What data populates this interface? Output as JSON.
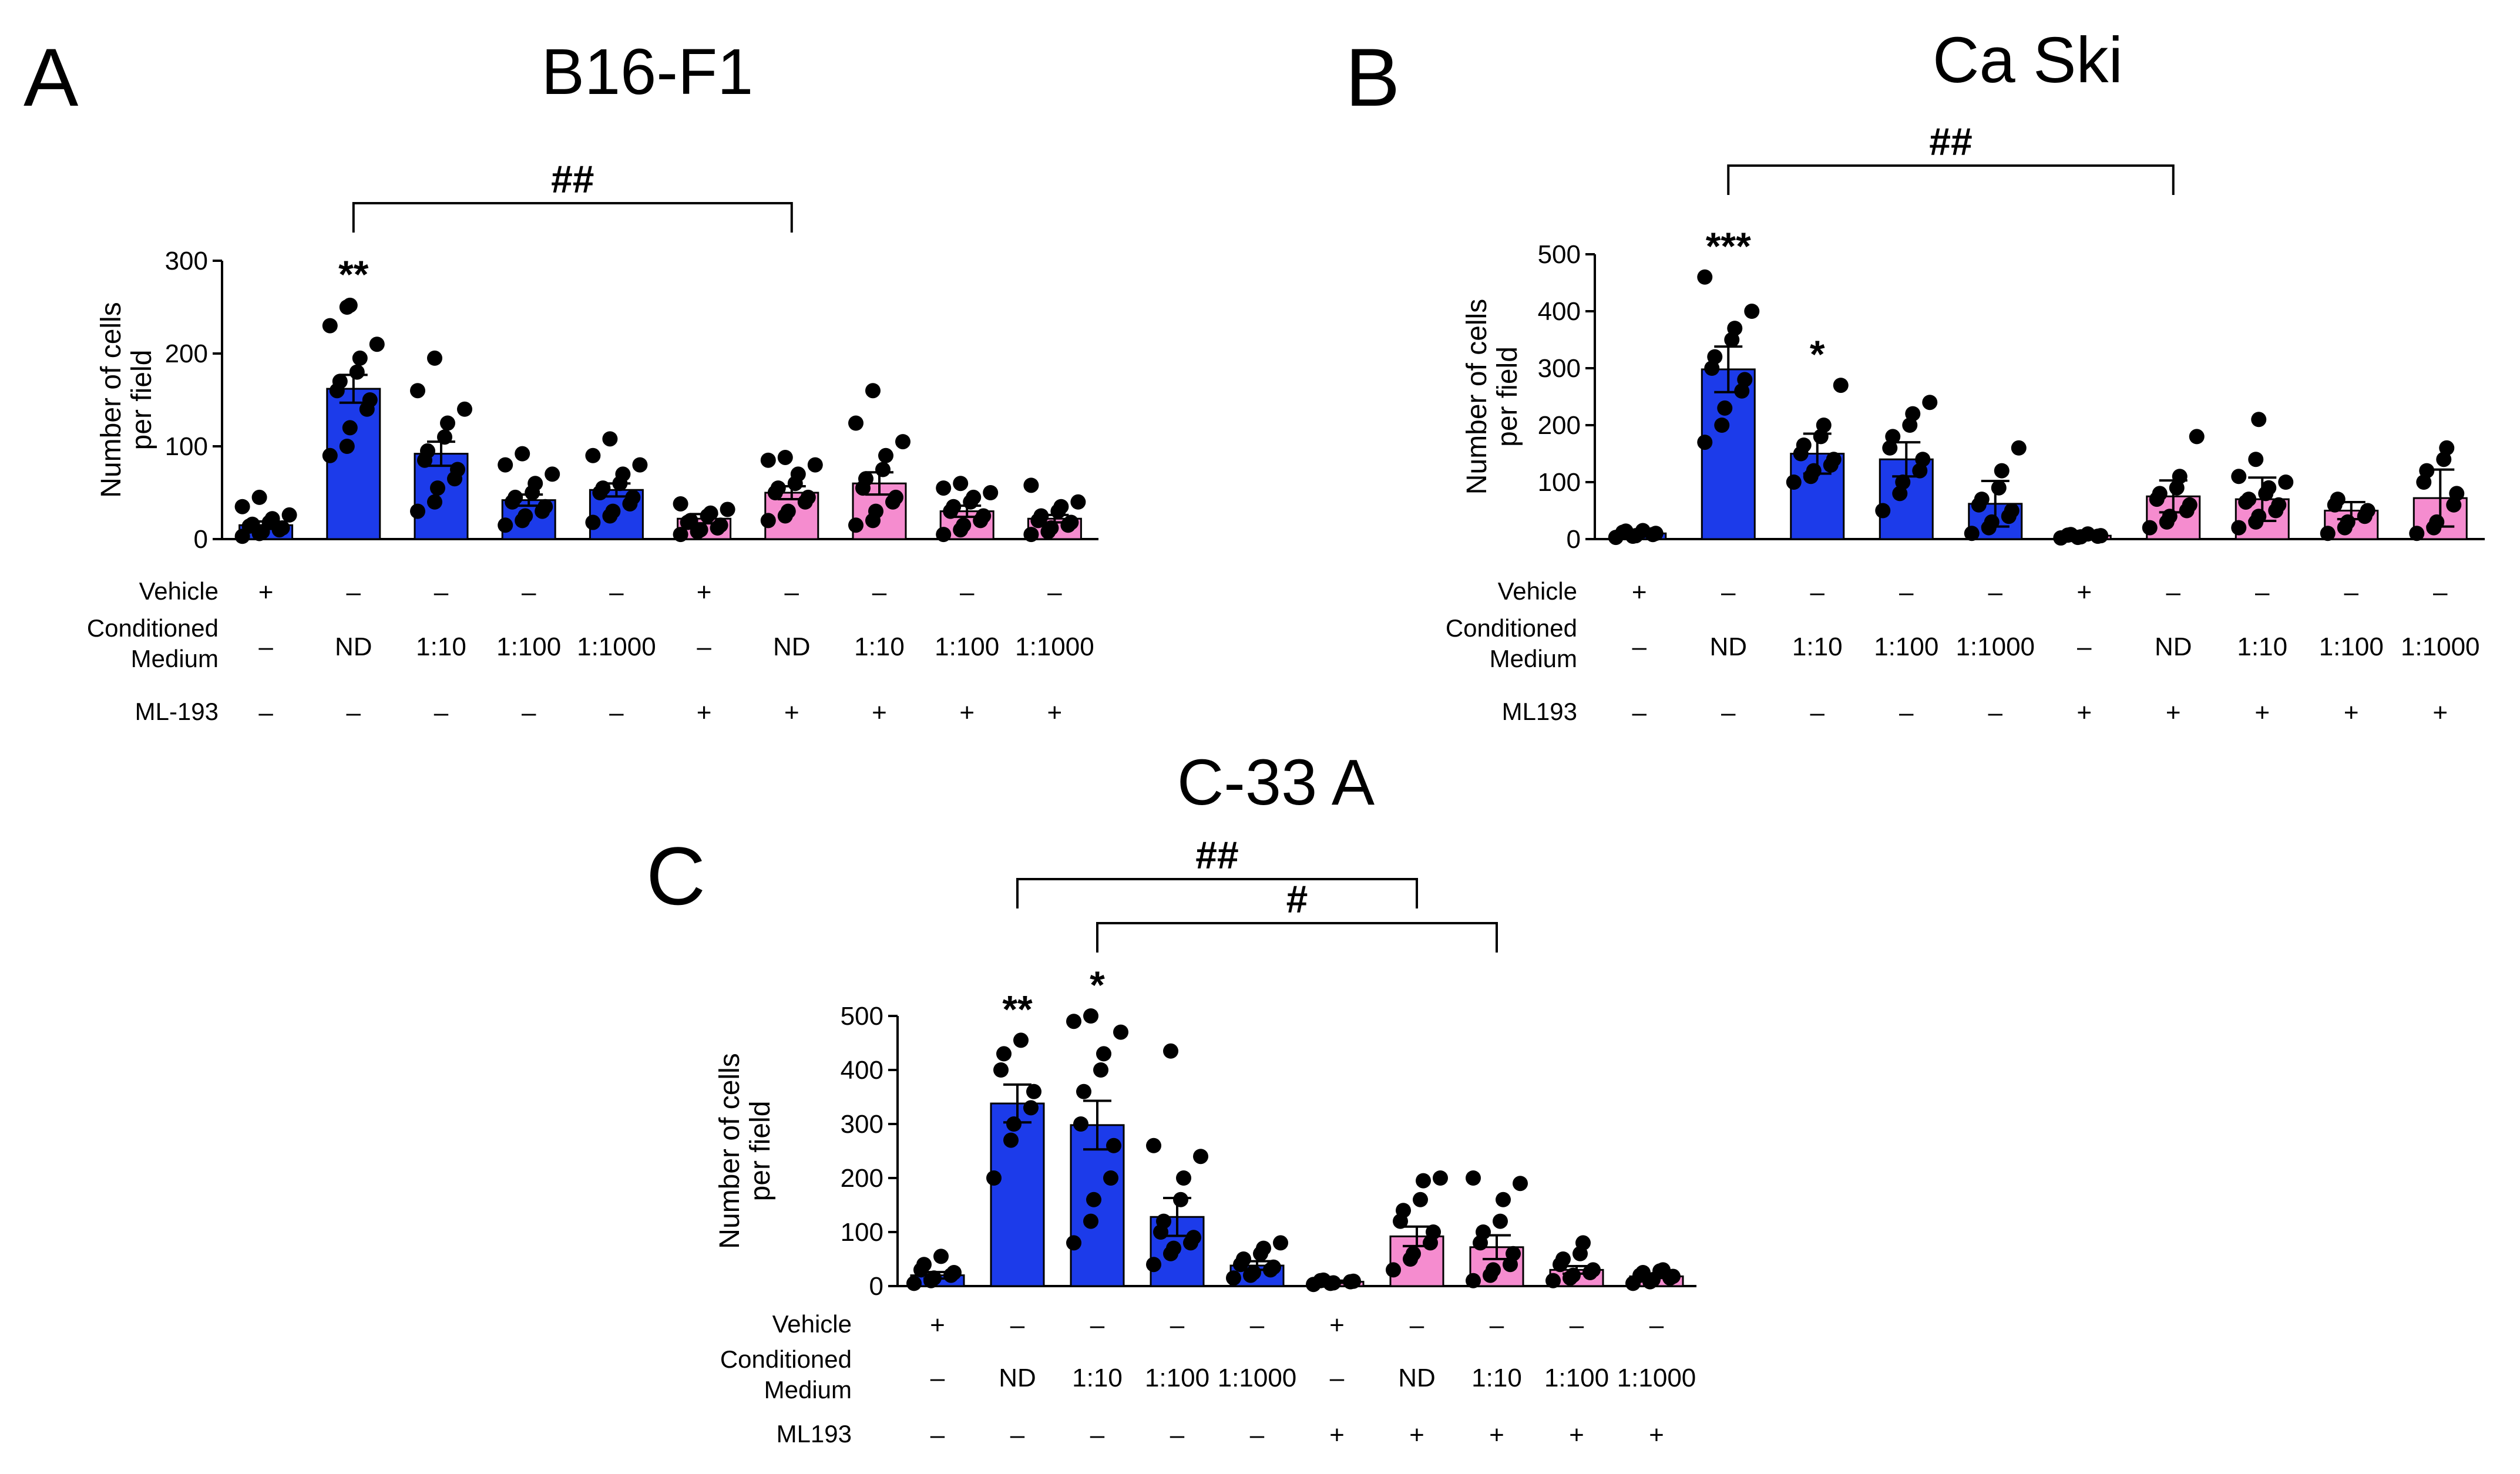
{
  "colors": {
    "blue": "#1c3bea",
    "pink": "#f58ccf",
    "ink": "#000000"
  },
  "row_labels": {
    "vehicle": "Vehicle",
    "cm_line1": "Conditioned",
    "cm_line2": "Medium"
  },
  "chart_data": [
    {
      "id": "A",
      "panel_label": "A",
      "type": "bar",
      "title": "B16-F1",
      "ylabel_line1": "Number of cells",
      "ylabel_line2": "per field",
      "ylim": [
        0,
        300
      ],
      "yticks": [
        "0",
        "100",
        "200",
        "300"
      ],
      "ml_label": "ML-193",
      "vehicle": [
        "+",
        "–",
        "–",
        "–",
        "–",
        "+",
        "–",
        "–",
        "–",
        "–"
      ],
      "conditioned_medium": [
        "–",
        "ND",
        "1:10",
        "1:100",
        "1:1000",
        "–",
        "ND",
        "1:10",
        "1:100",
        "1:1000"
      ],
      "ml193": [
        "–",
        "–",
        "–",
        "–",
        "–",
        "+",
        "+",
        "+",
        "+",
        "+"
      ],
      "bar_colors": [
        "blue",
        "blue",
        "blue",
        "blue",
        "blue",
        "pink",
        "pink",
        "pink",
        "pink",
        "pink"
      ],
      "values": [
        15,
        162,
        92,
        42,
        53,
        22,
        50,
        60,
        30,
        22
      ],
      "sem": [
        4,
        15,
        13,
        6,
        7,
        5,
        7,
        12,
        6,
        4
      ],
      "points": [
        [
          3,
          6,
          8,
          10,
          12,
          14,
          16,
          18,
          22,
          26,
          35,
          45
        ],
        [
          90,
          100,
          120,
          140,
          150,
          160,
          170,
          180,
          195,
          210,
          230,
          250,
          252
        ],
        [
          30,
          40,
          55,
          65,
          75,
          85,
          95,
          110,
          125,
          140,
          160,
          195
        ],
        [
          15,
          20,
          25,
          30,
          35,
          40,
          45,
          50,
          60,
          70,
          80,
          92
        ],
        [
          18,
          25,
          30,
          38,
          45,
          50,
          55,
          60,
          70,
          80,
          90,
          108
        ],
        [
          5,
          8,
          10,
          12,
          15,
          18,
          20,
          25,
          28,
          32,
          38
        ],
        [
          20,
          25,
          30,
          40,
          45,
          50,
          55,
          60,
          70,
          80,
          85,
          88
        ],
        [
          15,
          20,
          30,
          40,
          45,
          55,
          65,
          75,
          90,
          105,
          125,
          160
        ],
        [
          5,
          10,
          15,
          20,
          25,
          30,
          35,
          40,
          45,
          50,
          55,
          60
        ],
        [
          5,
          8,
          12,
          15,
          18,
          20,
          25,
          30,
          35,
          40,
          58
        ]
      ],
      "significance": [
        {
          "bar": 1,
          "label": "**"
        }
      ],
      "brackets": [
        {
          "from": 1,
          "to": 6,
          "label": "##"
        }
      ]
    },
    {
      "id": "B",
      "panel_label": "B",
      "type": "bar",
      "title": "Ca Ski",
      "ylabel_line1": "Number of cells",
      "ylabel_line2": "per field",
      "ylim": [
        0,
        500
      ],
      "yticks": [
        "0",
        "100",
        "200",
        "300",
        "400",
        "500"
      ],
      "ml_label": "ML193",
      "vehicle": [
        "+",
        "–",
        "–",
        "–",
        "–",
        "+",
        "–",
        "–",
        "–",
        "–"
      ],
      "conditioned_medium": [
        "–",
        "ND",
        "1:10",
        "1:100",
        "1:1000",
        "–",
        "ND",
        "1:10",
        "1:100",
        "1:1000"
      ],
      "ml193": [
        "–",
        "–",
        "–",
        "–",
        "–",
        "+",
        "+",
        "+",
        "+",
        "+"
      ],
      "bar_colors": [
        "blue",
        "blue",
        "blue",
        "blue",
        "blue",
        "pink",
        "pink",
        "pink",
        "pink",
        "pink"
      ],
      "values": [
        10,
        298,
        150,
        140,
        62,
        6,
        75,
        70,
        50,
        72
      ],
      "sem": [
        2,
        40,
        35,
        30,
        40,
        2,
        28,
        38,
        15,
        50
      ],
      "points": [
        [
          3,
          5,
          6,
          8,
          10,
          12,
          14,
          15
        ],
        [
          170,
          200,
          230,
          260,
          280,
          300,
          320,
          350,
          370,
          400,
          460
        ],
        [
          100,
          110,
          120,
          130,
          140,
          150,
          165,
          180,
          200,
          270
        ],
        [
          50,
          80,
          100,
          120,
          140,
          160,
          180,
          200,
          220,
          240
        ],
        [
          10,
          20,
          30,
          40,
          50,
          60,
          70,
          90,
          120,
          160
        ],
        [
          2,
          3,
          4,
          5,
          6,
          7,
          8,
          9
        ],
        [
          20,
          30,
          40,
          50,
          60,
          70,
          80,
          90,
          110,
          180
        ],
        [
          20,
          30,
          40,
          50,
          60,
          65,
          70,
          80,
          90,
          100,
          110,
          140,
          210
        ],
        [
          10,
          20,
          30,
          40,
          50,
          60,
          70
        ],
        [
          10,
          20,
          30,
          60,
          80,
          100,
          120,
          140,
          160
        ]
      ],
      "significance": [
        {
          "bar": 1,
          "label": "***"
        },
        {
          "bar": 2,
          "label": "*"
        }
      ],
      "brackets": [
        {
          "from": 1,
          "to": 6,
          "label": "##"
        }
      ]
    },
    {
      "id": "C",
      "panel_label": "C",
      "type": "bar",
      "title": "C-33 A",
      "ylabel_line1": "Number of cells",
      "ylabel_line2": "per field",
      "ylim": [
        0,
        500
      ],
      "yticks": [
        "0",
        "100",
        "200",
        "300",
        "400",
        "500"
      ],
      "ml_label": "ML193",
      "vehicle": [
        "+",
        "–",
        "–",
        "–",
        "–",
        "+",
        "–",
        "–",
        "–",
        "–"
      ],
      "conditioned_medium": [
        "–",
        "ND",
        "1:10",
        "1:100",
        "1:1000",
        "–",
        "ND",
        "1:10",
        "1:100",
        "1:1000"
      ],
      "ml193": [
        "–",
        "–",
        "–",
        "–",
        "–",
        "+",
        "+",
        "+",
        "+",
        "+"
      ],
      "bar_colors": [
        "blue",
        "blue",
        "blue",
        "blue",
        "blue",
        "pink",
        "pink",
        "pink",
        "pink",
        "pink"
      ],
      "values": [
        20,
        338,
        298,
        128,
        38,
        8,
        92,
        72,
        30,
        18
      ],
      "sem": [
        6,
        35,
        45,
        35,
        8,
        2,
        18,
        22,
        7,
        3
      ],
      "points": [
        [
          5,
          10,
          15,
          20,
          25,
          30,
          40,
          55
        ],
        [
          200,
          270,
          300,
          330,
          360,
          400,
          430,
          455
        ],
        [
          80,
          120,
          160,
          200,
          260,
          300,
          360,
          400,
          430,
          470,
          490,
          500
        ],
        [
          40,
          60,
          70,
          80,
          90,
          100,
          120,
          160,
          200,
          240,
          260,
          435
        ],
        [
          15,
          20,
          25,
          30,
          35,
          40,
          50,
          60,
          70,
          80
        ],
        [
          3,
          5,
          6,
          8,
          9,
          10,
          11
        ],
        [
          30,
          50,
          60,
          80,
          100,
          120,
          140,
          160,
          195,
          200
        ],
        [
          10,
          20,
          30,
          40,
          60,
          80,
          100,
          120,
          160,
          190,
          200
        ],
        [
          10,
          15,
          20,
          25,
          30,
          40,
          50,
          60,
          80
        ],
        [
          5,
          8,
          12,
          15,
          18,
          20,
          25,
          28,
          30
        ]
      ],
      "significance": [
        {
          "bar": 1,
          "label": "**"
        },
        {
          "bar": 2,
          "label": "*"
        }
      ],
      "brackets": [
        {
          "from": 1,
          "to": 6,
          "label": "##"
        },
        {
          "from": 2,
          "to": 7,
          "label": "#"
        }
      ]
    }
  ]
}
